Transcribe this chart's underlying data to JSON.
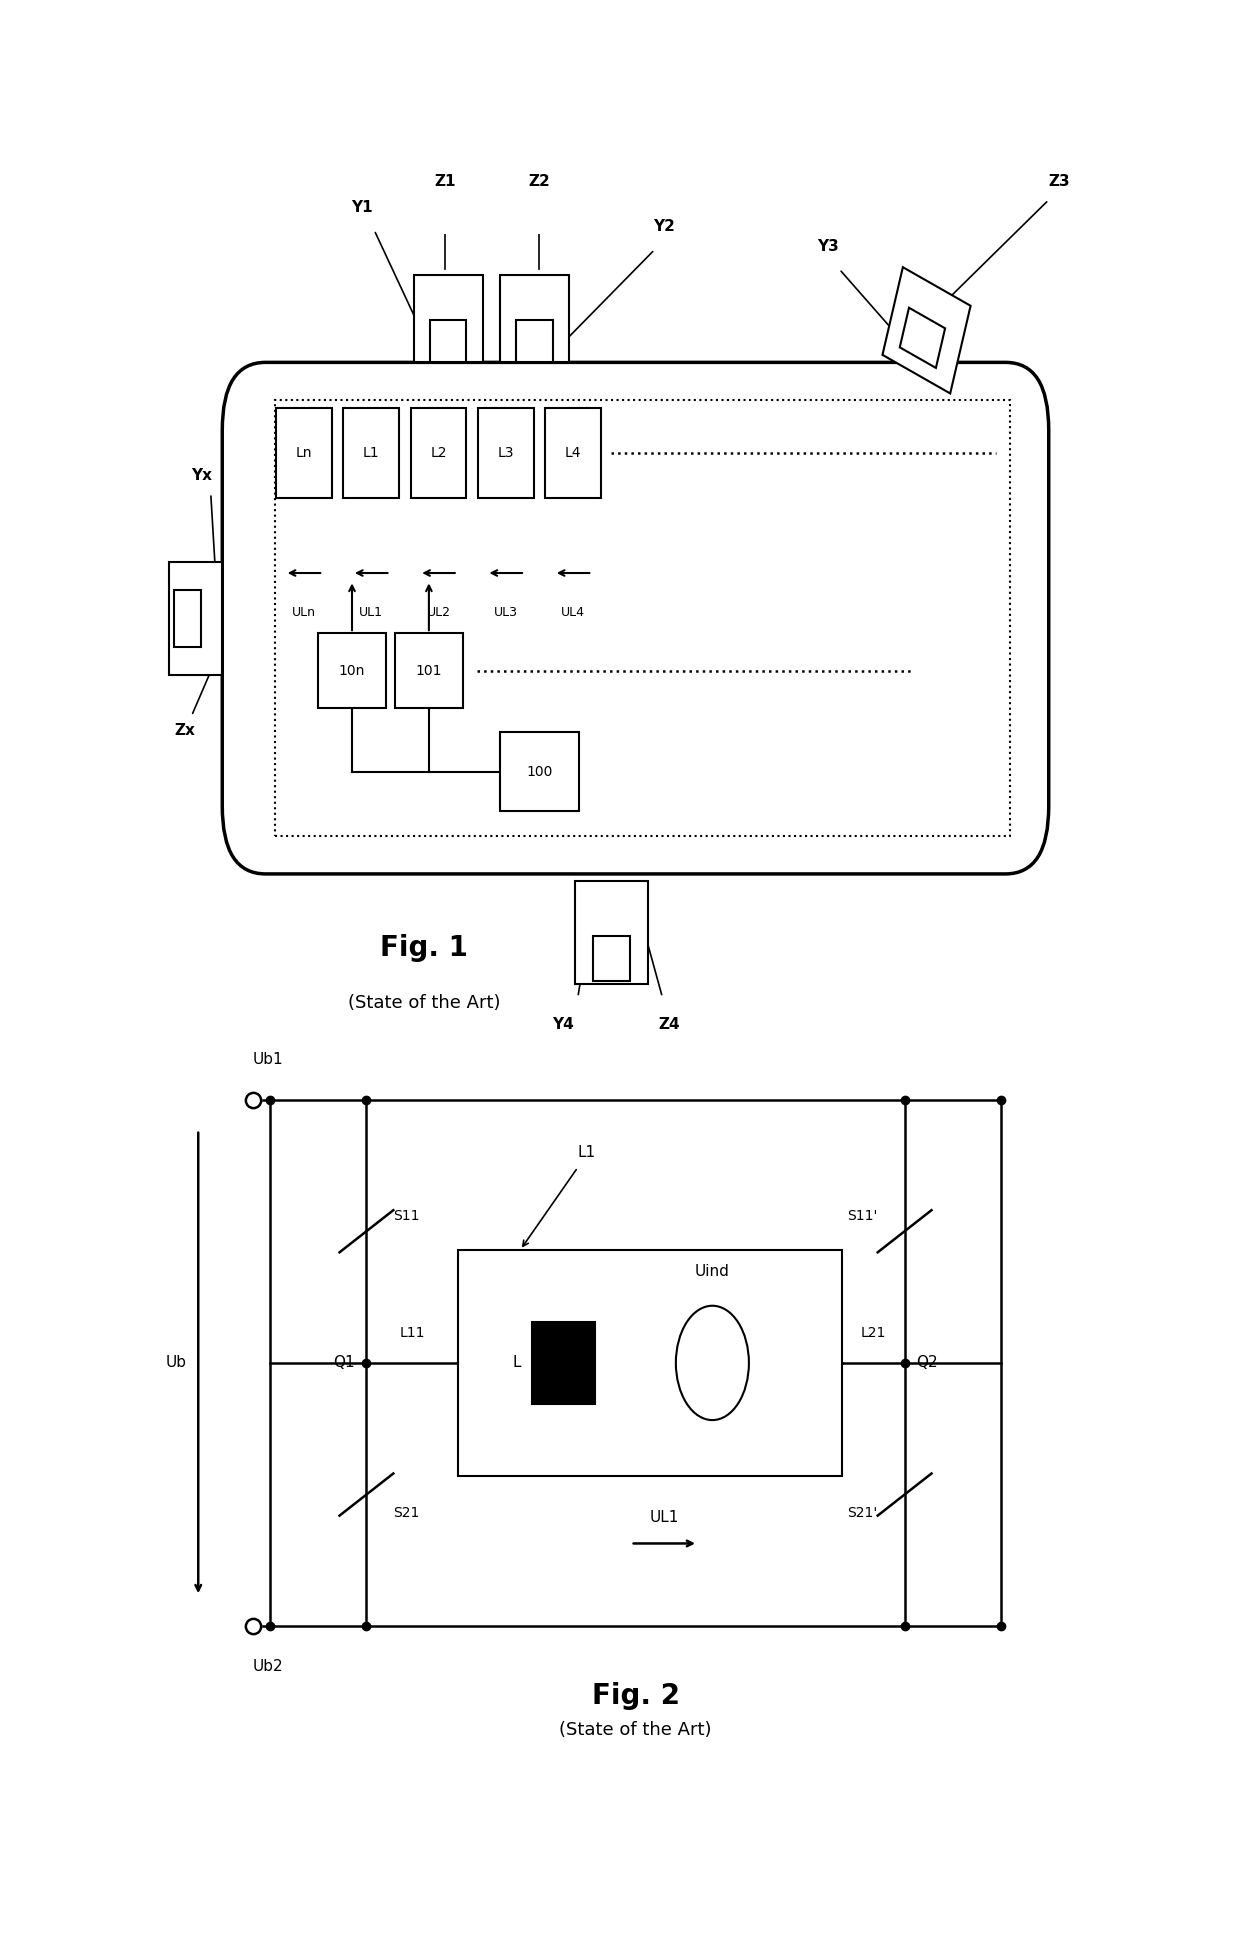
{
  "fig_width": 12.4,
  "fig_height": 19.54,
  "bg_color": "#ffffff",
  "line_color": "#000000",
  "fig1": {
    "title": "Fig. 1",
    "subtitle": "(State of the Art)",
    "coil_labels": [
      "Ln",
      "L1",
      "L2",
      "L3",
      "L4"
    ],
    "ul_labels": [
      "ULn",
      "UL1",
      "UL2",
      "UL3",
      "UL4"
    ]
  },
  "fig2": {
    "title": "Fig. 2",
    "subtitle": "(State of the Art)"
  }
}
